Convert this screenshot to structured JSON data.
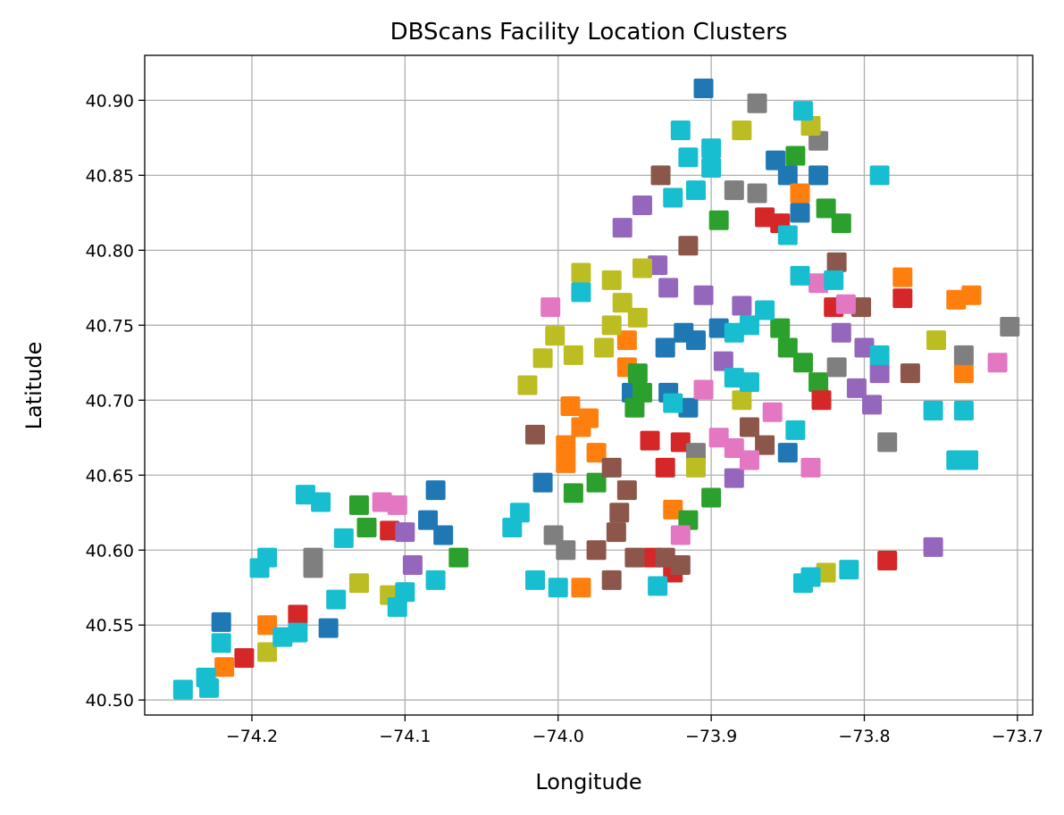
{
  "chart_data": {
    "type": "scatter",
    "title": "DBScans Facility Location Clusters",
    "xlabel": "Longitude",
    "ylabel": "Latitude",
    "xlim": [
      -74.27,
      -73.69
    ],
    "ylim": [
      40.49,
      40.93
    ],
    "xticks": [
      -74.2,
      -74.1,
      -74.0,
      -73.9,
      -73.8,
      -73.7
    ],
    "xtick_labels": [
      "−74.2",
      "−74.1",
      "−74.0",
      "−73.9",
      "−73.8",
      "−73.7"
    ],
    "yticks": [
      40.5,
      40.55,
      40.6,
      40.65,
      40.7,
      40.75,
      40.8,
      40.85,
      40.9
    ],
    "ytick_labels": [
      "40.50",
      "40.55",
      "40.60",
      "40.65",
      "40.70",
      "40.75",
      "40.80",
      "40.85",
      "40.90"
    ],
    "grid": true,
    "marker": "square",
    "palette": [
      "#1f77b4",
      "#ff7f0e",
      "#2ca02c",
      "#d62728",
      "#9467bd",
      "#8c564b",
      "#e377c2",
      "#7f7f7f",
      "#bcbd22",
      "#17becf"
    ],
    "clusters": [
      {
        "color": "#1f77b4",
        "points": [
          [
            -73.905,
            40.908
          ],
          [
            -73.858,
            40.86
          ],
          [
            -73.85,
            40.85
          ],
          [
            -73.842,
            40.825
          ],
          [
            -73.83,
            40.85
          ],
          [
            -73.91,
            40.74
          ],
          [
            -73.895,
            40.748
          ],
          [
            -73.93,
            40.735
          ],
          [
            -73.918,
            40.745
          ],
          [
            -73.915,
            40.695
          ],
          [
            -73.952,
            40.705
          ],
          [
            -73.928,
            40.705
          ],
          [
            -74.01,
            40.645
          ],
          [
            -73.85,
            40.665
          ],
          [
            -74.08,
            40.64
          ],
          [
            -74.085,
            40.62
          ],
          [
            -74.075,
            40.61
          ],
          [
            -74.22,
            40.552
          ],
          [
            -74.15,
            40.548
          ]
        ]
      },
      {
        "color": "#ff7f0e",
        "points": [
          [
            -73.842,
            40.838
          ],
          [
            -73.775,
            40.782
          ],
          [
            -73.73,
            40.77
          ],
          [
            -73.74,
            40.767
          ],
          [
            -73.735,
            40.718
          ],
          [
            -73.955,
            40.74
          ],
          [
            -73.955,
            40.722
          ],
          [
            -73.992,
            40.696
          ],
          [
            -73.985,
            40.682
          ],
          [
            -73.995,
            40.67
          ],
          [
            -73.975,
            40.665
          ],
          [
            -73.98,
            40.688
          ],
          [
            -73.995,
            40.658
          ],
          [
            -73.985,
            40.575
          ],
          [
            -73.925,
            40.627
          ],
          [
            -74.19,
            40.55
          ],
          [
            -74.218,
            40.522
          ]
        ]
      },
      {
        "color": "#2ca02c",
        "points": [
          [
            -73.845,
            40.863
          ],
          [
            -73.825,
            40.828
          ],
          [
            -73.815,
            40.818
          ],
          [
            -73.895,
            40.82
          ],
          [
            -73.855,
            40.748
          ],
          [
            -73.85,
            40.735
          ],
          [
            -73.84,
            40.725
          ],
          [
            -73.83,
            40.712
          ],
          [
            -73.948,
            40.718
          ],
          [
            -73.945,
            40.705
          ],
          [
            -73.95,
            40.695
          ],
          [
            -73.99,
            40.638
          ],
          [
            -73.975,
            40.645
          ],
          [
            -73.9,
            40.635
          ],
          [
            -73.915,
            40.62
          ],
          [
            -74.13,
            40.63
          ],
          [
            -74.125,
            40.615
          ],
          [
            -74.065,
            40.595
          ]
        ]
      },
      {
        "color": "#d62728",
        "points": [
          [
            -73.865,
            40.822
          ],
          [
            -73.855,
            40.818
          ],
          [
            -73.82,
            40.762
          ],
          [
            -73.775,
            40.768
          ],
          [
            -73.828,
            40.7
          ],
          [
            -73.94,
            40.673
          ],
          [
            -73.92,
            40.672
          ],
          [
            -73.93,
            40.655
          ],
          [
            -73.925,
            40.585
          ],
          [
            -73.938,
            40.595
          ],
          [
            -73.785,
            40.593
          ],
          [
            -74.11,
            40.613
          ],
          [
            -74.17,
            40.557
          ],
          [
            -74.205,
            40.528
          ]
        ]
      },
      {
        "color": "#9467bd",
        "points": [
          [
            -73.958,
            40.815
          ],
          [
            -73.945,
            40.83
          ],
          [
            -73.935,
            40.79
          ],
          [
            -73.928,
            40.775
          ],
          [
            -73.905,
            40.77
          ],
          [
            -73.88,
            40.763
          ],
          [
            -73.892,
            40.726
          ],
          [
            -73.815,
            40.745
          ],
          [
            -73.8,
            40.735
          ],
          [
            -73.79,
            40.718
          ],
          [
            -73.805,
            40.708
          ],
          [
            -73.795,
            40.697
          ],
          [
            -73.885,
            40.648
          ],
          [
            -73.755,
            40.602
          ],
          [
            -74.095,
            40.59
          ],
          [
            -74.1,
            40.612
          ]
        ]
      },
      {
        "color": "#8c564b",
        "points": [
          [
            -73.933,
            40.85
          ],
          [
            -73.915,
            40.803
          ],
          [
            -73.818,
            40.792
          ],
          [
            -73.802,
            40.762
          ],
          [
            -73.77,
            40.718
          ],
          [
            -73.965,
            40.655
          ],
          [
            -73.955,
            40.64
          ],
          [
            -73.96,
            40.625
          ],
          [
            -73.962,
            40.612
          ],
          [
            -73.975,
            40.6
          ],
          [
            -73.95,
            40.595
          ],
          [
            -73.965,
            40.58
          ],
          [
            -73.93,
            40.595
          ],
          [
            -73.92,
            40.59
          ],
          [
            -74.015,
            40.677
          ],
          [
            -73.875,
            40.682
          ],
          [
            -73.865,
            40.67
          ]
        ]
      },
      {
        "color": "#e377c2",
        "points": [
          [
            -74.005,
            40.762
          ],
          [
            -73.83,
            40.778
          ],
          [
            -73.812,
            40.764
          ],
          [
            -73.713,
            40.725
          ],
          [
            -73.905,
            40.707
          ],
          [
            -73.86,
            40.692
          ],
          [
            -73.895,
            40.675
          ],
          [
            -73.885,
            40.668
          ],
          [
            -73.875,
            40.66
          ],
          [
            -73.835,
            40.655
          ],
          [
            -74.105,
            40.63
          ],
          [
            -74.115,
            40.632
          ],
          [
            -73.92,
            40.61
          ]
        ]
      },
      {
        "color": "#7f7f7f",
        "points": [
          [
            -73.87,
            40.898
          ],
          [
            -73.83,
            40.873
          ],
          [
            -73.885,
            40.84
          ],
          [
            -73.87,
            40.838
          ],
          [
            -73.705,
            40.749
          ],
          [
            -73.735,
            40.73
          ],
          [
            -73.818,
            40.722
          ],
          [
            -73.785,
            40.672
          ],
          [
            -73.91,
            40.665
          ],
          [
            -74.003,
            40.61
          ],
          [
            -73.995,
            40.6
          ],
          [
            -74.16,
            40.595
          ],
          [
            -74.16,
            40.588
          ]
        ]
      },
      {
        "color": "#bcbd22",
        "points": [
          [
            -73.88,
            40.88
          ],
          [
            -73.835,
            40.883
          ],
          [
            -73.985,
            40.785
          ],
          [
            -73.965,
            40.78
          ],
          [
            -73.945,
            40.788
          ],
          [
            -73.958,
            40.765
          ],
          [
            -73.948,
            40.755
          ],
          [
            -73.965,
            40.75
          ],
          [
            -74.002,
            40.743
          ],
          [
            -74.01,
            40.728
          ],
          [
            -74.02,
            40.71
          ],
          [
            -73.99,
            40.73
          ],
          [
            -73.97,
            40.735
          ],
          [
            -73.88,
            40.7
          ],
          [
            -73.91,
            40.655
          ],
          [
            -73.753,
            40.74
          ],
          [
            -73.825,
            40.585
          ],
          [
            -74.13,
            40.578
          ],
          [
            -74.11,
            40.57
          ],
          [
            -74.19,
            40.532
          ]
        ]
      },
      {
        "color": "#17becf",
        "points": [
          [
            -73.84,
            40.893
          ],
          [
            -73.92,
            40.88
          ],
          [
            -73.915,
            40.862
          ],
          [
            -73.9,
            40.868
          ],
          [
            -73.91,
            40.84
          ],
          [
            -73.925,
            40.835
          ],
          [
            -73.9,
            40.855
          ],
          [
            -73.79,
            40.85
          ],
          [
            -73.85,
            40.81
          ],
          [
            -73.842,
            40.783
          ],
          [
            -73.82,
            40.78
          ],
          [
            -73.885,
            40.745
          ],
          [
            -73.875,
            40.75
          ],
          [
            -73.865,
            40.76
          ],
          [
            -73.885,
            40.715
          ],
          [
            -73.875,
            40.712
          ],
          [
            -73.845,
            40.68
          ],
          [
            -73.79,
            40.73
          ],
          [
            -73.755,
            40.693
          ],
          [
            -73.735,
            40.693
          ],
          [
            -73.74,
            40.66
          ],
          [
            -73.732,
            40.66
          ],
          [
            -73.985,
            40.772
          ],
          [
            -73.925,
            40.698
          ],
          [
            -74.025,
            40.625
          ],
          [
            -74.03,
            40.615
          ],
          [
            -74.015,
            40.58
          ],
          [
            -74.0,
            40.575
          ],
          [
            -73.935,
            40.576
          ],
          [
            -73.84,
            40.578
          ],
          [
            -73.835,
            40.582
          ],
          [
            -73.81,
            40.587
          ],
          [
            -74.165,
            40.637
          ],
          [
            -74.155,
            40.632
          ],
          [
            -74.14,
            40.608
          ],
          [
            -74.08,
            40.58
          ],
          [
            -74.1,
            40.572
          ],
          [
            -74.105,
            40.562
          ],
          [
            -74.19,
            40.595
          ],
          [
            -74.195,
            40.588
          ],
          [
            -74.17,
            40.545
          ],
          [
            -74.18,
            40.542
          ],
          [
            -74.145,
            40.567
          ],
          [
            -74.22,
            40.538
          ],
          [
            -74.23,
            40.515
          ],
          [
            -74.245,
            40.507
          ],
          [
            -74.228,
            40.508
          ]
        ]
      }
    ]
  }
}
